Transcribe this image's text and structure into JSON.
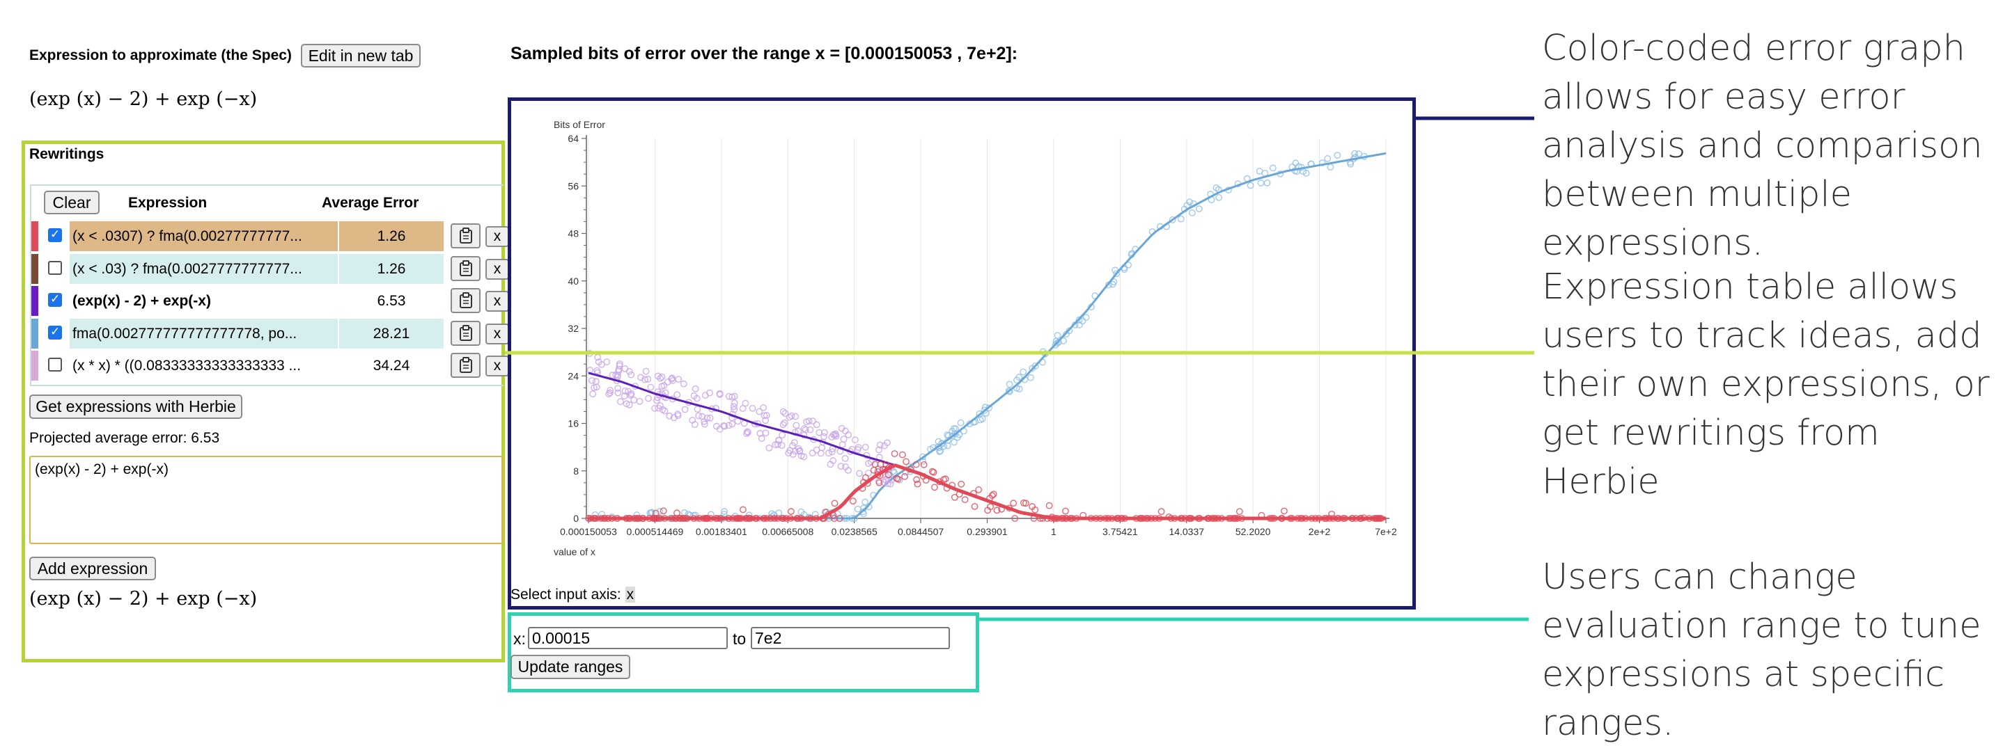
{
  "spec": {
    "label": "Expression to approximate (the Spec)",
    "edit_button": "Edit in new tab",
    "math": "(exp (x) − 2) + exp (−x)"
  },
  "rewritings": {
    "title": "Rewritings",
    "clear_button": "Clear",
    "col_expression": "Expression",
    "col_error": "Average Error",
    "rows": [
      {
        "expr": "(x < .0307) ? fma(0.00277777777...",
        "error": "1.26",
        "checked": true,
        "bold": false,
        "color": "#e04a58",
        "bg": "#deb887"
      },
      {
        "expr": "(x < .03) ? fma(0.0027777777777...",
        "error": "1.26",
        "checked": false,
        "bold": false,
        "color": "#7b4a35",
        "bg": "#d6eeee"
      },
      {
        "expr": "(exp(x) - 2) + exp(-x)",
        "error": "6.53",
        "checked": true,
        "bold": true,
        "color": "#6a1bc8",
        "bg": "#ffffff"
      },
      {
        "expr": "fma(0.002777777777777778, po...",
        "error": "28.21",
        "checked": true,
        "bold": false,
        "color": "#6aa6d6",
        "bg": "#d6eeee"
      },
      {
        "expr": "(x * x) * ((0.08333333333333333 ...",
        "error": "34.24",
        "checked": false,
        "bold": false,
        "color": "#d9a8d8",
        "bg": "#ffffff"
      }
    ],
    "copy_icon": "clipboard-icon",
    "delete_label": "x",
    "get_button": "Get expressions with Herbie",
    "projected": "Projected average error: 6.53",
    "textarea_value": "(exp(x) - 2) + exp(-x)",
    "add_button": "Add expression",
    "preview_math": "(exp (x) − 2) + exp (−x)"
  },
  "plot": {
    "title": "Sampled bits of error over the range x = [0.000150053 , 7e+2]:",
    "select_axis_label": "Select input axis:",
    "select_axis_value": "x"
  },
  "chart_data": {
    "type": "scatter",
    "ylabel": "Bits of Error",
    "xlabel": "value of x",
    "ylim": [
      0,
      64
    ],
    "yticks": [
      "0",
      "8",
      "16",
      "24",
      "32",
      "40",
      "48",
      "56",
      "64"
    ],
    "xticks": [
      "0.000150053",
      "0.000514469",
      "0.00183401",
      "0.00665008",
      "0.0238565",
      "0.0844507",
      "0.293901",
      "1",
      "3.75421",
      "14.0337",
      "52.2020",
      "2e+2",
      "7e+2"
    ],
    "grid": true,
    "series": [
      {
        "color": "#6aa6d6",
        "x_tick_index": [
          0,
          0.5,
          1,
          1.5,
          2,
          2.5,
          3,
          3.5,
          4,
          4.2,
          4.4,
          4.6,
          4.8,
          5,
          5.5,
          6,
          6.5,
          7,
          7.5,
          8,
          8.5,
          9,
          9.5,
          10,
          10.5,
          11,
          11.5,
          12
        ],
        "values": [
          0,
          0,
          0,
          0,
          0,
          0,
          0,
          0,
          0,
          2,
          5,
          7,
          8.5,
          10,
          14,
          18.5,
          23,
          29,
          35,
          42,
          48,
          52,
          55,
          57,
          58.5,
          59.5,
          60.5,
          61.5
        ]
      },
      {
        "color": "#5a1fb8",
        "x_tick_index": [
          0,
          0.5,
          1,
          1.5,
          2,
          2.5,
          3,
          3.5,
          4,
          4.3,
          4.6
        ],
        "values": [
          24.5,
          23,
          21,
          19.5,
          18,
          16,
          14.5,
          13,
          11,
          10,
          9
        ]
      },
      {
        "color": "#e04a58",
        "x_tick_index": [
          0,
          1,
          2,
          3,
          3.5,
          3.8,
          4,
          4.3,
          4.6,
          5,
          5.5,
          6,
          6.5,
          7,
          8,
          9,
          10,
          11,
          12
        ],
        "values": [
          0,
          0,
          0,
          0,
          0,
          2,
          4.5,
          7,
          9,
          7.5,
          5,
          3,
          1,
          0,
          0,
          0,
          0,
          0,
          0
        ]
      }
    ]
  },
  "ranges": {
    "x_label": "x:",
    "from_value": "0.00015",
    "to_label": "to",
    "to_value": "7e2",
    "update_button": "Update ranges"
  },
  "annotations": {
    "graph_note": "Color-coded error graph allows for easy error analysis and comparison between multiple expressions.",
    "table_note": "Expression table allows users to track ideas, add their own expressions, or get rewritings from Herbie",
    "range_note": "Users can change evaluation range to tune expressions at specific ranges."
  },
  "colors": {
    "rewritings_frame": "#b5d334",
    "plot_frame": "#1a1a6e",
    "range_frame": "#2fd1b0"
  }
}
